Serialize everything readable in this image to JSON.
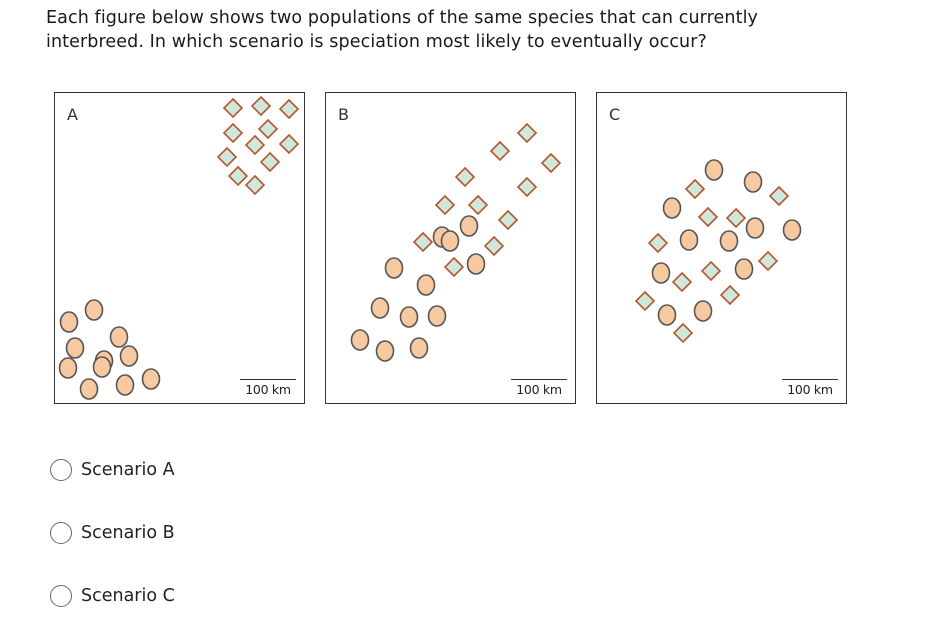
{
  "question": "Each figure below shows two populations of the same species that can currently interbreed. In which scenario is speciation most likely to eventually occur?",
  "colors": {
    "circle_fill": "#f6c9a0",
    "circle_stroke": "#555555",
    "diamond_fill": "#cfe8dc",
    "diamond_stroke": "#b5552e"
  },
  "panels": [
    {
      "letter": "A",
      "scale_label": "100 km"
    },
    {
      "letter": "B",
      "scale_label": "100 km"
    },
    {
      "letter": "C",
      "scale_label": "100 km"
    }
  ],
  "options": [
    {
      "label": "Scenario A"
    },
    {
      "label": "Scenario B"
    },
    {
      "label": "Scenario C"
    }
  ]
}
